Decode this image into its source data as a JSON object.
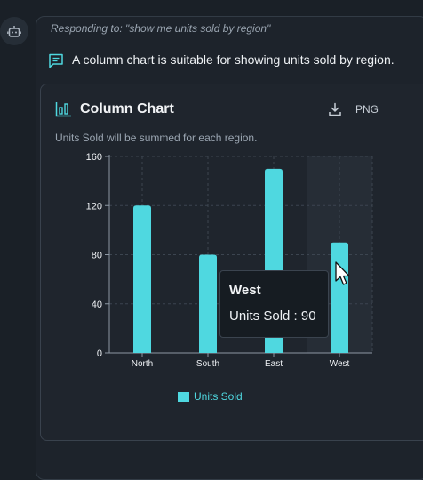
{
  "message": {
    "responding_to": "Responding to: \"show me units sold by region\"",
    "reply": "A column chart is suitable for showing units sold by region."
  },
  "chart_card": {
    "title": "Column Chart",
    "download_label": "PNG",
    "subtitle": "Units Sold will be summed for each region."
  },
  "chart_data": {
    "type": "bar",
    "categories": [
      "North",
      "South",
      "East",
      "West"
    ],
    "series": [
      {
        "name": "Units Sold",
        "values": [
          120,
          80,
          150,
          90
        ]
      }
    ],
    "ylim": [
      0,
      160
    ],
    "yticks": [
      0,
      40,
      80,
      120,
      160
    ],
    "grid": true,
    "legend": "bottom",
    "color": "#4fd8e0",
    "hovered_category": "West"
  },
  "tooltip": {
    "title": "West",
    "value_text": "Units Sold : 90"
  },
  "icons": {
    "avatar": "bot-icon",
    "reply": "message-icon",
    "chart": "bar-chart-icon",
    "download": "download-icon",
    "pointer": "cursor-icon"
  }
}
